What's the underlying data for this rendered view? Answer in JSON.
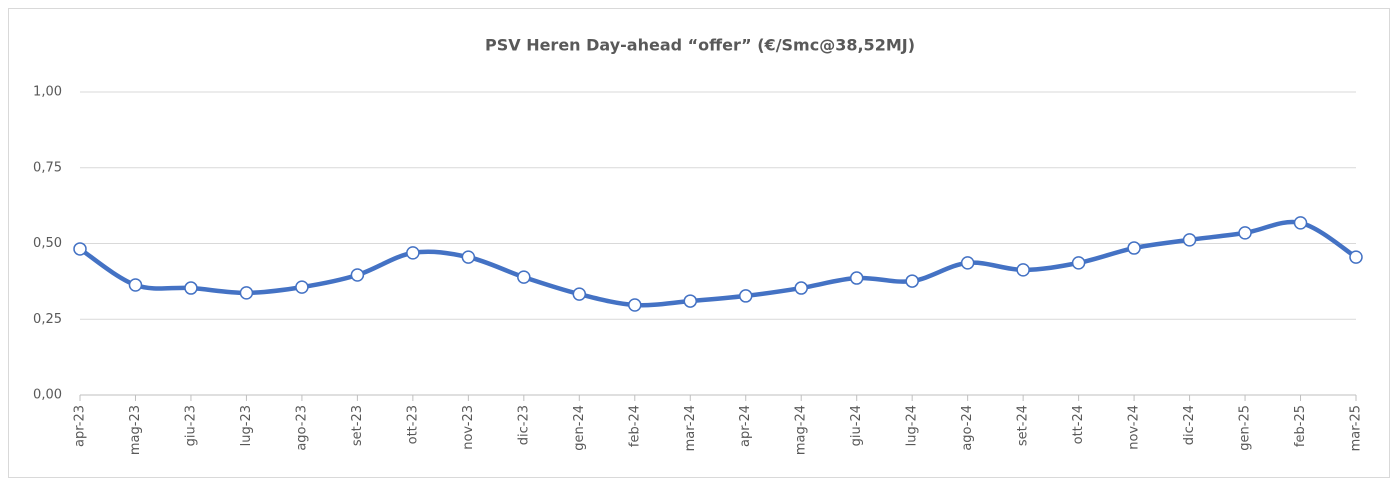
{
  "chart_data": {
    "type": "line",
    "title": "PSV Heren Day-ahead “offer” (€/Smc@38,52MJ)",
    "categories": [
      "apr-23",
      "mag-23",
      "giu-23",
      "lug-23",
      "ago-23",
      "set-23",
      "ott-23",
      "nov-23",
      "dic-23",
      "gen-24",
      "feb-24",
      "mar-24",
      "apr-24",
      "mag-24",
      "giu-24",
      "lug-24",
      "ago-24",
      "set-24",
      "ott-24",
      "nov-24",
      "dic-24",
      "gen-25",
      "feb-25",
      "mar-25"
    ],
    "series": [
      {
        "name": "PSV Heren Day-ahead offer",
        "color": "#4472c4",
        "values": [
          0.482,
          0.363,
          0.353,
          0.337,
          0.356,
          0.396,
          0.469,
          0.455,
          0.389,
          0.333,
          0.297,
          0.31,
          0.327,
          0.353,
          0.386,
          0.376,
          0.436,
          0.413,
          0.436,
          0.485,
          0.512,
          0.535,
          0.568,
          0.455
        ]
      }
    ],
    "ylim": [
      0,
      1
    ],
    "yticks": [
      {
        "value": 0,
        "label": "0,00"
      },
      {
        "value": 0.25,
        "label": "0,25"
      },
      {
        "value": 0.5,
        "label": "0,50"
      },
      {
        "value": 0.75,
        "label": "0,75"
      },
      {
        "value": 1,
        "label": "1,00"
      }
    ],
    "grid": true
  }
}
